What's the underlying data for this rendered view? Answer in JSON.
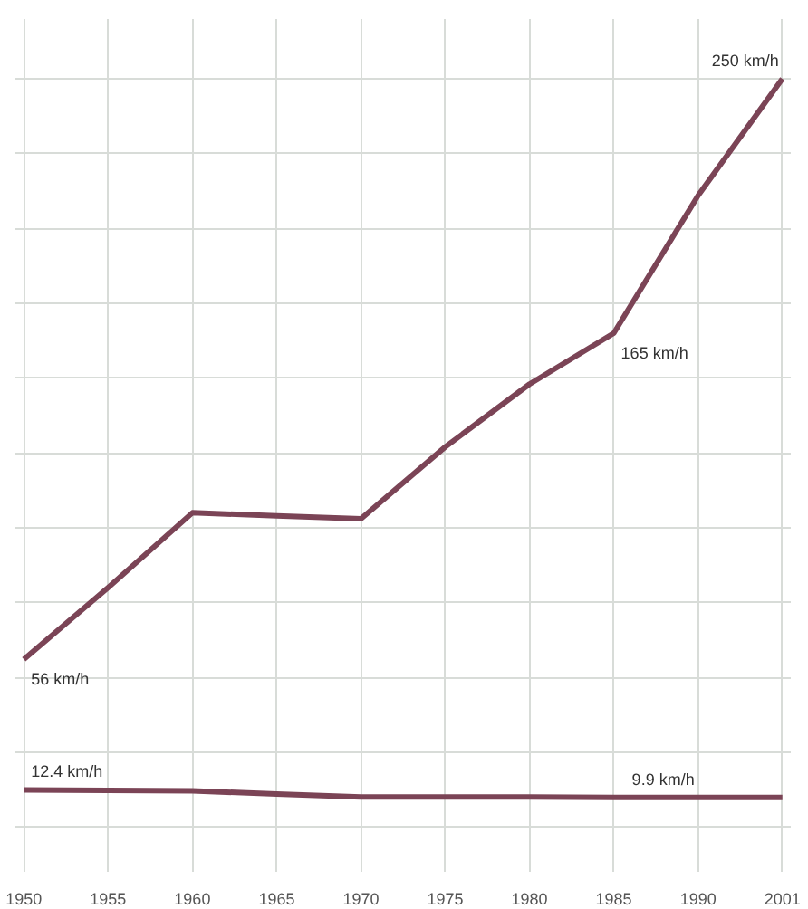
{
  "chart_data": {
    "type": "line",
    "categories": [
      "1950",
      "1955",
      "1960",
      "1965",
      "1970",
      "1975",
      "1980",
      "1985",
      "1990",
      "2001"
    ],
    "series": [
      {
        "color": "#7b4456",
        "values": [
          56,
          80,
          105,
          104,
          103,
          127,
          148,
          165,
          211,
          250
        ],
        "value_labels": [
          "56 km/h",
          null,
          null,
          null,
          null,
          null,
          null,
          "165 km/h",
          null,
          "250 km/h"
        ]
      },
      {
        "color": "#7b4456",
        "values": [
          12.4,
          12.2,
          12.1,
          11.0,
          10.0,
          10.0,
          10.0,
          9.9,
          9.9,
          9.9
        ],
        "value_labels": [
          "12.4 km/h",
          null,
          null,
          null,
          null,
          null,
          null,
          null,
          "9.9 km/h",
          null
        ]
      }
    ],
    "ylim": [
      -15,
      270
    ],
    "yticks": [
      {
        "value": 0,
        "label": null
      },
      {
        "value": 25,
        "label": null
      },
      {
        "value": 50,
        "label": null
      },
      {
        "value": 75,
        "label": null
      },
      {
        "value": 100,
        "label": null
      },
      {
        "value": 125,
        "label": null
      },
      {
        "value": 150,
        "label": null
      },
      {
        "value": 175,
        "label": null
      },
      {
        "value": 200,
        "label": null
      },
      {
        "value": 225,
        "label": null
      },
      {
        "value": 250,
        "label": null
      }
    ],
    "tick_labels": "x",
    "grid": true,
    "marker": "none",
    "line_style": "solid"
  }
}
